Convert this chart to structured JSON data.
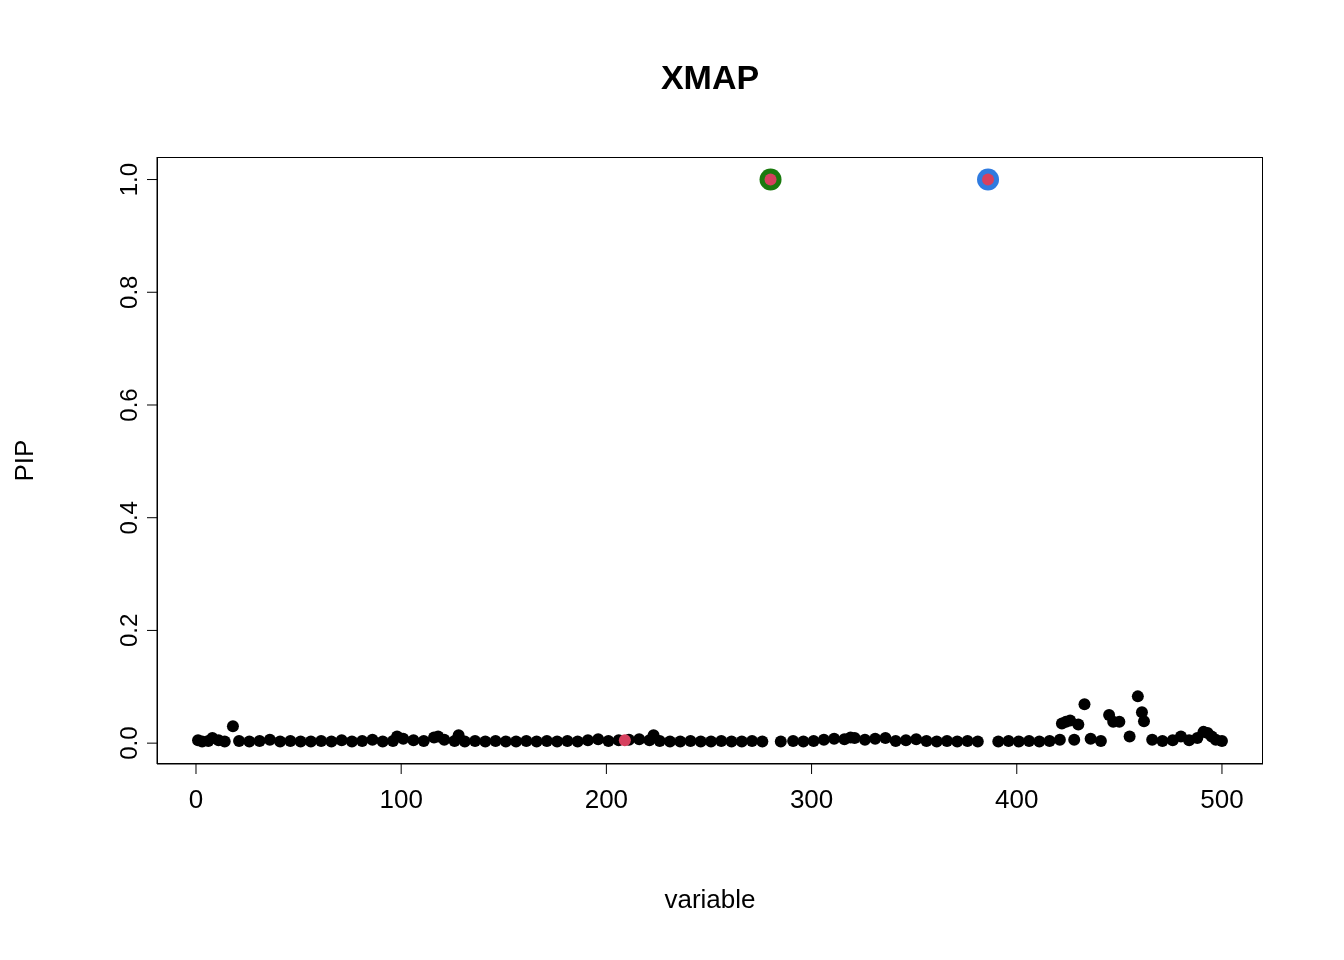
{
  "chart_data": {
    "type": "scatter",
    "title": "XMAP",
    "xlabel": "variable",
    "ylabel": "PIP",
    "xlim": [
      -19,
      520
    ],
    "ylim": [
      -0.037,
      1.04
    ],
    "xticks": [
      0,
      100,
      200,
      300,
      400,
      500
    ],
    "yticks": [
      {
        "value": 0,
        "label": "0.0"
      },
      0.2,
      0.4,
      0.6,
      0.8,
      {
        "value": 1,
        "label": "1.0"
      }
    ],
    "marker": "circle",
    "series": [
      {
        "color": "#000000",
        "x": [
          1,
          3,
          6,
          8,
          11,
          14,
          18,
          21,
          26,
          31,
          36,
          41,
          46,
          51,
          56,
          61,
          66,
          71,
          76,
          81,
          86,
          91,
          96,
          98,
          101,
          106,
          111,
          116,
          118,
          121,
          126,
          128,
          131,
          136,
          141,
          146,
          151,
          156,
          161,
          166,
          171,
          176,
          181,
          186,
          191,
          196,
          201,
          206,
          211,
          216,
          221,
          223,
          226,
          231,
          236,
          241,
          246,
          251,
          256,
          261,
          266,
          271,
          276,
          285,
          291,
          296,
          301,
          306,
          311,
          316,
          319,
          321,
          326,
          331,
          336,
          341,
          346,
          351,
          356,
          361,
          366,
          371,
          376,
          381,
          391,
          396,
          401,
          406,
          411,
          416,
          421,
          422,
          424,
          426,
          428,
          430,
          433,
          436,
          441,
          445,
          447,
          450,
          455,
          459,
          461,
          462,
          466,
          471,
          476,
          480,
          484,
          488,
          491,
          493,
          495,
          497,
          500
        ],
        "values": [
          0.005,
          0.003,
          0.004,
          0.009,
          0.005,
          0.003,
          0.03,
          0.004,
          0.003,
          0.004,
          0.006,
          0.003,
          0.004,
          0.003,
          0.003,
          0.004,
          0.003,
          0.005,
          0.003,
          0.004,
          0.006,
          0.003,
          0.004,
          0.012,
          0.008,
          0.005,
          0.004,
          0.01,
          0.012,
          0.006,
          0.004,
          0.014,
          0.003,
          0.004,
          0.003,
          0.004,
          0.003,
          0.003,
          0.004,
          0.003,
          0.004,
          0.003,
          0.004,
          0.003,
          0.005,
          0.007,
          0.004,
          0.005,
          0.006,
          0.007,
          0.005,
          0.014,
          0.004,
          0.003,
          0.003,
          0.004,
          0.003,
          0.003,
          0.004,
          0.003,
          0.003,
          0.004,
          0.003,
          0.003,
          0.004,
          0.003,
          0.004,
          0.006,
          0.008,
          0.007,
          0.01,
          0.009,
          0.006,
          0.008,
          0.009,
          0.004,
          0.005,
          0.007,
          0.004,
          0.003,
          0.004,
          0.003,
          0.004,
          0.003,
          0.003,
          0.004,
          0.003,
          0.004,
          0.003,
          0.004,
          0.006,
          0.035,
          0.038,
          0.04,
          0.006,
          0.033,
          0.069,
          0.008,
          0.004,
          0.05,
          0.038,
          0.038,
          0.012,
          0.083,
          0.055,
          0.039,
          0.006,
          0.004,
          0.005,
          0.012,
          0.005,
          0.009,
          0.02,
          0.018,
          0.012,
          0.006,
          0.004
        ]
      },
      {
        "color": "#1a7a0e",
        "x": [
          280
        ],
        "values": [
          1
        ],
        "sizes": [
          1
        ]
      },
      {
        "color": "#2f7be0",
        "x": [
          386
        ],
        "values": [
          1
        ],
        "sizes": [
          1
        ]
      },
      {
        "color": "#d6405e",
        "x": [
          209,
          280,
          386
        ],
        "values": [
          0.005,
          1,
          1
        ]
      }
    ]
  }
}
